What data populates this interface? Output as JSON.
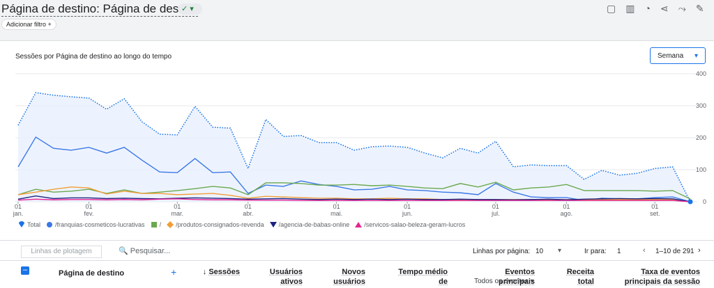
{
  "header": {
    "title": "Página de destino: Página de destino",
    "add_filter": "Adicionar filtro"
  },
  "card": {
    "title": "Sessões por Página de destino ao longo do tempo",
    "dropdown": "Semana"
  },
  "chart_data": {
    "type": "line",
    "categories": [
      "01\njan.",
      null,
      null,
      null,
      "01\nfev.",
      null,
      null,
      null,
      null,
      "01\nmar.",
      null,
      null,
      null,
      "01\nabr.",
      null,
      null,
      null,
      null,
      "01\nmai.",
      null,
      null,
      null,
      "01\njun.",
      null,
      null,
      null,
      null,
      "01\njul.",
      null,
      null,
      null,
      "01\nago.",
      null,
      null,
      null,
      null,
      "01\nset.",
      null,
      null
    ],
    "series": [
      {
        "name": "Total",
        "color": "#1a73e8",
        "marker": "pin",
        "values": [
          239,
          341,
          333,
          328,
          324,
          289,
          322,
          250,
          211,
          209,
          298,
          233,
          230,
          104,
          257,
          204,
          207,
          185,
          185,
          161,
          172,
          174,
          170,
          152,
          137,
          167,
          152,
          189,
          109,
          115,
          113,
          113,
          70,
          98,
          83,
          89,
          104,
          109,
          0
        ]
      },
      {
        "name": "/franquias-cosmeticos-lucrativas",
        "color": "#3b78e7",
        "marker": "circle",
        "values": [
          109,
          202,
          167,
          161,
          170,
          152,
          170,
          130,
          93,
          91,
          135,
          91,
          93,
          26,
          52,
          48,
          65,
          54,
          48,
          37,
          39,
          48,
          37,
          35,
          30,
          28,
          22,
          57,
          30,
          15,
          13,
          13,
          4,
          11,
          9,
          9,
          13,
          15,
          0
        ]
      },
      {
        "name": "/",
        "color": "#6aa84f",
        "marker": "square",
        "values": [
          22,
          39,
          30,
          33,
          39,
          26,
          37,
          26,
          30,
          35,
          41,
          48,
          43,
          22,
          59,
          59,
          57,
          52,
          52,
          54,
          50,
          52,
          48,
          43,
          41,
          57,
          46,
          61,
          37,
          43,
          46,
          54,
          35,
          35,
          35,
          35,
          33,
          35,
          9
        ]
      },
      {
        "name": "/produtos-consignados-revenda",
        "color": "#f29d38",
        "marker": "diamond",
        "values": [
          22,
          30,
          39,
          46,
          43,
          24,
          33,
          26,
          26,
          22,
          24,
          26,
          20,
          11,
          17,
          15,
          13,
          11,
          11,
          9,
          9,
          11,
          9,
          9,
          7,
          7,
          7,
          7,
          7,
          7,
          7,
          7,
          7,
          7,
          7,
          7,
          7,
          7,
          0
        ]
      },
      {
        "name": "/agencia-de-babas-online",
        "color": "#1a237e",
        "marker": "triangle-down",
        "values": [
          8,
          18,
          10,
          12,
          12,
          10,
          11,
          10,
          9,
          11,
          12,
          11,
          10,
          8,
          9,
          10,
          8,
          7,
          8,
          7,
          8,
          7,
          8,
          7,
          7,
          8,
          7,
          7,
          6,
          7,
          8,
          6,
          8,
          9,
          10,
          9,
          10,
          9,
          0
        ]
      },
      {
        "name": "/servicos-salao-beleza-geram-lucros",
        "color": "#e52592",
        "marker": "triangle-up",
        "values": [
          5,
          8,
          6,
          7,
          7,
          6,
          7,
          6,
          8,
          9,
          7,
          6,
          6,
          5,
          5,
          5,
          4,
          4,
          4,
          4,
          4,
          4,
          4,
          4,
          4,
          4,
          4,
          4,
          4,
          4,
          4,
          4,
          4,
          4,
          4,
          4,
          4,
          4,
          0
        ]
      }
    ],
    "ylim": [
      0,
      400
    ],
    "yticks": [
      0,
      100,
      200,
      300,
      400
    ],
    "grid": true,
    "legend_position": "bottom"
  },
  "table": {
    "plot_rows": "Linhas de plotagem",
    "search": "Pesquisar...",
    "rows_per_page_label": "Linhas por página:",
    "rows_per_page": 10,
    "go_to_label": "Ir para:",
    "go_to": 1,
    "pagination": "1–10 de 291",
    "events_filter": "Todos os eventos",
    "columns": [
      "Página de destino",
      "Sessões",
      "Usuários ativos",
      "Novos usuários",
      "Tempo médio de engajamento por",
      "Eventos principais",
      "Receita total",
      "Taxa de eventos principais da sessão"
    ]
  }
}
